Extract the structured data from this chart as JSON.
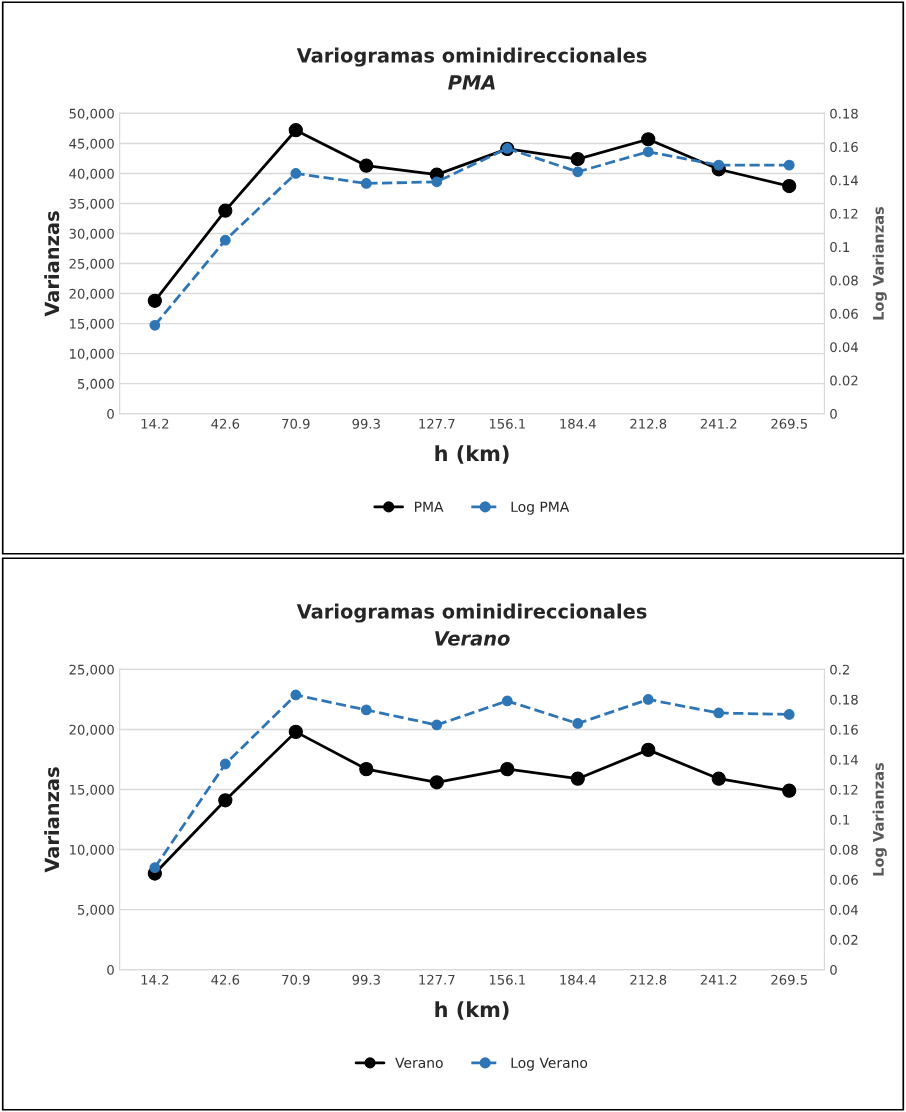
{
  "chart_data": [
    {
      "type": "line",
      "title": "Variogramas ominidireccionales",
      "subtitle": "PMA",
      "xlabel": "h (km)",
      "ylabel": "Varianzas",
      "y2label": "Log Varianzas",
      "categories": [
        "14.2",
        "42.6",
        "70.9",
        "99.3",
        "127.7",
        "156.1",
        "184.4",
        "212.8",
        "241.2",
        "269.5"
      ],
      "series": [
        {
          "name": "PMA",
          "color": "#000000",
          "line_style": "solid",
          "values": [
            18800,
            33800,
            47200,
            41300,
            39800,
            44100,
            42400,
            45700,
            40700,
            37900
          ]
        },
        {
          "name": "Log PMA",
          "color": "#2e75b6",
          "line_style": "dashed",
          "axis": "y2",
          "values": [
            0.053,
            0.104,
            0.144,
            0.138,
            0.139,
            0.159,
            0.145,
            0.157,
            0.149,
            0.149
          ]
        }
      ],
      "ylim": [
        0,
        50000
      ],
      "yticks": [
        0,
        {
          "value": 5000,
          "label": "5,000"
        },
        {
          "value": 10000,
          "label": "10,000"
        },
        {
          "value": 15000,
          "label": "15,000"
        },
        {
          "value": 20000,
          "label": "20,000"
        },
        {
          "value": 25000,
          "label": "25,000"
        },
        {
          "value": 30000,
          "label": "30,000"
        },
        {
          "value": 35000,
          "label": "35,000"
        },
        {
          "value": 40000,
          "label": "40,000"
        },
        {
          "value": 45000,
          "label": "45,000"
        },
        {
          "value": 50000,
          "label": "50,000"
        }
      ],
      "y2lim": [
        0,
        0.18
      ],
      "y2ticks": [
        0,
        0.02,
        0.04,
        0.06,
        0.08,
        0.1,
        0.12,
        0.14,
        0.16,
        0.18
      ],
      "grid": "y",
      "legend": "bottom",
      "marker": "circle"
    },
    {
      "type": "line",
      "title": "Variogramas ominidireccionales",
      "subtitle": "Verano",
      "xlabel": "h (km)",
      "ylabel": "Varianzas",
      "y2label": "Log Varianzas",
      "categories": [
        "14.2",
        "42.6",
        "70.9",
        "99.3",
        "127.7",
        "156.1",
        "184.4",
        "212.8",
        "241.2",
        "269.5"
      ],
      "series": [
        {
          "name": "Verano",
          "color": "#000000",
          "line_style": "solid",
          "values": [
            8000,
            14100,
            19800,
            16700,
            15600,
            16700,
            15900,
            18300,
            15900,
            14900
          ]
        },
        {
          "name": "Log Verano",
          "color": "#2e75b6",
          "line_style": "dashed",
          "axis": "y2",
          "values": [
            0.068,
            0.137,
            0.183,
            0.173,
            0.163,
            0.179,
            0.164,
            0.18,
            0.171,
            0.17
          ]
        }
      ],
      "ylim": [
        0,
        25000
      ],
      "yticks": [
        0,
        {
          "value": 5000,
          "label": "5,000"
        },
        {
          "value": 10000,
          "label": "10,000"
        },
        {
          "value": 15000,
          "label": "15,000"
        },
        {
          "value": 20000,
          "label": "20,000"
        },
        {
          "value": 25000,
          "label": "25,000"
        }
      ],
      "y2lim": [
        0,
        0.2
      ],
      "y2ticks": [
        0,
        0.02,
        0.04,
        0.06,
        0.08,
        0.1,
        0.12,
        0.14,
        0.16,
        0.18,
        0.2
      ],
      "grid": "y",
      "legend": "bottom",
      "marker": "circle"
    }
  ]
}
